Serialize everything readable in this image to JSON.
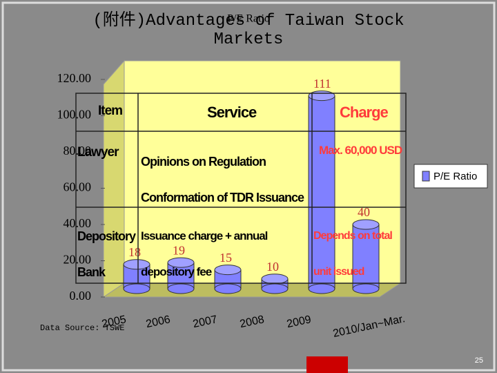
{
  "slide": {
    "title": "(附件)Advantages of Taiwan Stock Markets",
    "source": "Data Source: TSWE",
    "page": "25"
  },
  "table": {
    "header": [
      "Item",
      "Service",
      "Charge"
    ],
    "rows": [
      [
        "Lawyer",
        "Opinions on Regulation Conformation of TDR Issuance",
        "Max. 60,000 USD"
      ],
      [
        "Depository Bank",
        "Issuance charge + annual depository fee",
        "Depends on total unit issued"
      ]
    ]
  },
  "chart_data": {
    "type": "bar",
    "title": "P/E Ratio",
    "categories": [
      "2005",
      "2006",
      "2007",
      "2008",
      "2009",
      "2010/Jan~Mar."
    ],
    "series": [
      {
        "name": "P/E Ratio",
        "color": "#8080ff",
        "values": [
          18,
          19,
          15,
          10,
          111,
          40
        ]
      }
    ],
    "ylim": [
      0,
      120
    ],
    "yticks": [
      {
        "value": 0,
        "label": "0.00"
      },
      {
        "value": 20,
        "label": "20.00"
      },
      {
        "value": 40,
        "label": "40.00"
      },
      {
        "value": 60,
        "label": "60.00"
      },
      {
        "value": 80,
        "label": "80.00"
      },
      {
        "value": 100,
        "label": "100.00"
      },
      {
        "value": 120,
        "label": "120.00"
      }
    ],
    "legend": "right"
  }
}
